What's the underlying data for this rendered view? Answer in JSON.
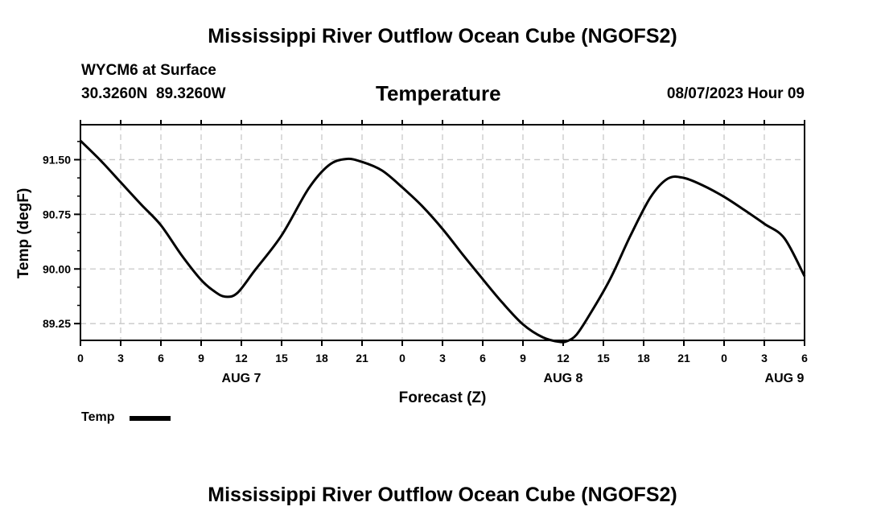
{
  "header": {
    "title": "Mississippi River Outflow Ocean Cube (NGOFS2)",
    "station": "WYCM6 at Surface",
    "coords": "30.3260N  89.3260W",
    "plot_title": "Temperature",
    "datetime": "08/07/2023 Hour 09"
  },
  "footer": {
    "title": "Mississippi River Outflow Ocean Cube (NGOFS2)"
  },
  "legend": {
    "label": "Temp"
  },
  "colors": {
    "line": "#000000",
    "grid": "#c8c8c8"
  },
  "chart_data": {
    "type": "line",
    "title": "Temperature",
    "xlabel": "Forecast (Z)",
    "ylabel": "Temp (degF)",
    "xlim": [
      0,
      54
    ],
    "ylim": [
      89.02,
      91.98
    ],
    "x_ticks": [
      0,
      3,
      6,
      9,
      12,
      15,
      18,
      21,
      24,
      27,
      30,
      33,
      36,
      39,
      42,
      45,
      48,
      51,
      54
    ],
    "x_tick_labels": [
      "0",
      "3",
      "6",
      "9",
      "12",
      "15",
      "18",
      "21",
      "0",
      "3",
      "6",
      "9",
      "12",
      "15",
      "18",
      "21",
      "0",
      "3",
      "6"
    ],
    "y_ticks": [
      89.25,
      90.0,
      90.75,
      91.5
    ],
    "y_tick_labels": [
      "89.25",
      "90.00",
      "90.75",
      "91.50"
    ],
    "date_labels": [
      {
        "x": 12,
        "label": "AUG 7"
      },
      {
        "x": 36,
        "label": "AUG 8"
      },
      {
        "x": 52.5,
        "label": "AUG 9"
      }
    ],
    "grid": true,
    "series": [
      {
        "name": "Temp",
        "x": [
          0,
          1.5,
          3,
          4.5,
          6,
          7.5,
          9,
          10,
          10.8,
          11.7,
          13,
          15,
          17,
          18.5,
          19.8,
          21,
          22.5,
          24,
          25.5,
          27,
          28.5,
          30,
          31.5,
          33,
          34.5,
          35.7,
          36.3,
          37,
          38,
          39.5,
          41,
          42.5,
          43.8,
          45,
          46.5,
          48,
          49.5,
          51,
          52.5,
          54
        ],
        "y": [
          91.76,
          91.49,
          91.19,
          90.89,
          90.6,
          90.2,
          89.85,
          89.69,
          89.62,
          89.67,
          89.98,
          90.46,
          91.1,
          91.42,
          91.51,
          91.47,
          91.35,
          91.12,
          90.86,
          90.55,
          90.2,
          89.86,
          89.53,
          89.24,
          89.06,
          89.0,
          89.01,
          89.1,
          89.38,
          89.86,
          90.45,
          90.98,
          91.24,
          91.25,
          91.14,
          90.99,
          90.81,
          90.62,
          90.42,
          89.9
        ]
      }
    ]
  }
}
